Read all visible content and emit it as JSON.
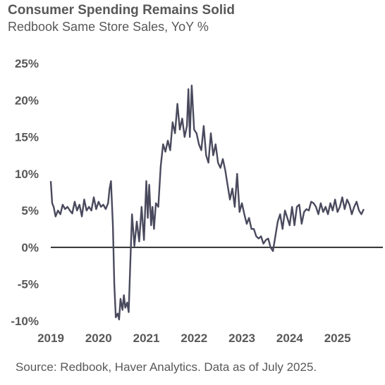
{
  "chart_data": {
    "type": "line",
    "title": "Consumer Spending Remains Solid",
    "subtitle": "Redbook Same Store Sales, YoY %",
    "source": "Source: Redbook, Haver Analytics. Data as of July 2025.",
    "xlabel": "",
    "ylabel": "",
    "xlim": [
      2019.0,
      2025.95
    ],
    "ylim": [
      -10,
      25
    ],
    "x_ticks": [
      {
        "value": 2019,
        "label": "2019"
      },
      {
        "value": 2020,
        "label": "2020"
      },
      {
        "value": 2021,
        "label": "2021"
      },
      {
        "value": 2022,
        "label": "2022"
      },
      {
        "value": 2023,
        "label": "2023"
      },
      {
        "value": 2024,
        "label": "2024"
      },
      {
        "value": 2025,
        "label": "2025"
      }
    ],
    "y_ticks": [
      {
        "value": 25,
        "label": "25%"
      },
      {
        "value": 20,
        "label": "20%"
      },
      {
        "value": 15,
        "label": "15%"
      },
      {
        "value": 10,
        "label": "10%"
      },
      {
        "value": 5,
        "label": "5%"
      },
      {
        "value": 0,
        "label": "0%"
      },
      {
        "value": -5,
        "label": "-5%"
      },
      {
        "value": -10,
        "label": "-10%"
      }
    ],
    "grid": false,
    "zero_line": true,
    "colors": {
      "series": "#4a4a5e",
      "text": "#58585a",
      "zero_line": "#000000"
    },
    "series": [
      {
        "x": [
          2019.0,
          2019.03,
          2019.06,
          2019.1,
          2019.15,
          2019.2,
          2019.25,
          2019.3,
          2019.35,
          2019.4,
          2019.45,
          2019.5,
          2019.55,
          2019.6,
          2019.65,
          2019.7,
          2019.75,
          2019.8,
          2019.85,
          2019.9,
          2019.95,
          2020.0,
          2020.05,
          2020.1,
          2020.15,
          2020.2,
          2020.23,
          2020.26,
          2020.3,
          2020.33,
          2020.36,
          2020.4,
          2020.43,
          2020.46,
          2020.5,
          2020.53,
          2020.56,
          2020.6,
          2020.63,
          2020.66,
          2020.7,
          2020.75,
          2020.8,
          2020.85,
          2020.9,
          2020.95,
          2021.0,
          2021.03,
          2021.06,
          2021.1,
          2021.13,
          2021.16,
          2021.2,
          2021.25,
          2021.3,
          2021.35,
          2021.4,
          2021.45,
          2021.5,
          2021.55,
          2021.6,
          2021.65,
          2021.7,
          2021.75,
          2021.8,
          2021.85,
          2021.88,
          2021.91,
          2021.95,
          2022.0,
          2022.05,
          2022.1,
          2022.15,
          2022.2,
          2022.25,
          2022.3,
          2022.35,
          2022.4,
          2022.45,
          2022.5,
          2022.55,
          2022.6,
          2022.65,
          2022.7,
          2022.75,
          2022.8,
          2022.85,
          2022.9,
          2022.95,
          2023.0,
          2023.05,
          2023.1,
          2023.15,
          2023.2,
          2023.25,
          2023.3,
          2023.35,
          2023.4,
          2023.45,
          2023.5,
          2023.55,
          2023.6,
          2023.65,
          2023.7,
          2023.75,
          2023.8,
          2023.85,
          2023.9,
          2023.95,
          2024.0,
          2024.05,
          2024.1,
          2024.15,
          2024.2,
          2024.25,
          2024.3,
          2024.35,
          2024.4,
          2024.45,
          2024.5,
          2024.55,
          2024.6,
          2024.65,
          2024.7,
          2024.75,
          2024.8,
          2024.85,
          2024.9,
          2024.95,
          2025.0,
          2025.05,
          2025.1,
          2025.15,
          2025.2,
          2025.25,
          2025.3,
          2025.35,
          2025.4,
          2025.45,
          2025.5,
          2025.55
        ],
        "y": [
          9.0,
          6.0,
          5.5,
          4.2,
          5.0,
          4.5,
          5.8,
          5.2,
          5.5,
          5.0,
          4.6,
          6.2,
          5.0,
          5.8,
          4.2,
          6.5,
          5.0,
          5.5,
          5.0,
          6.8,
          5.2,
          6.2,
          5.5,
          5.8,
          5.2,
          6.0,
          8.0,
          9.0,
          3.0,
          -5.0,
          -9.5,
          -9.0,
          -9.8,
          -7.0,
          -8.5,
          -6.5,
          -8.2,
          -7.5,
          -8.8,
          -3.0,
          4.5,
          0.2,
          3.5,
          0.8,
          5.5,
          1.0,
          9.0,
          4.0,
          8.5,
          3.0,
          5.5,
          2.5,
          6.0,
          5.5,
          11.0,
          14.0,
          13.0,
          14.5,
          13.2,
          17.0,
          15.5,
          19.5,
          16.0,
          17.5,
          15.0,
          16.5,
          21.5,
          15.0,
          22.0,
          16.0,
          15.5,
          14.0,
          13.2,
          16.5,
          12.5,
          11.5,
          15.5,
          12.5,
          14.0,
          11.5,
          10.8,
          12.0,
          10.5,
          8.5,
          6.5,
          8.0,
          5.5,
          10.0,
          4.8,
          6.0,
          4.5,
          3.2,
          4.0,
          2.5,
          2.5,
          1.5,
          1.2,
          1.5,
          0.5,
          1.0,
          1.2,
          0.0,
          -0.5,
          1.5,
          3.5,
          4.5,
          2.5,
          5.0,
          4.0,
          3.0,
          5.5,
          3.0,
          5.5,
          5.8,
          3.2,
          4.8,
          5.2,
          5.0,
          6.2,
          6.0,
          5.5,
          4.5,
          6.0,
          4.8,
          5.5,
          4.5,
          6.0,
          5.0,
          6.5,
          4.8,
          5.5,
          6.8,
          5.2,
          6.5,
          5.8,
          4.5,
          5.5,
          6.2,
          5.0,
          4.5,
          5.2
        ]
      }
    ]
  }
}
